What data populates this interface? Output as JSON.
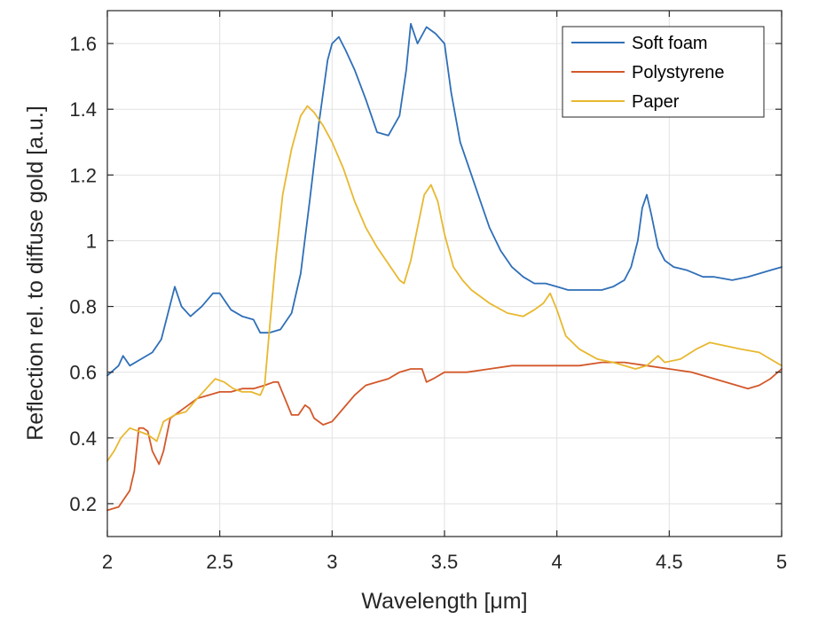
{
  "chart_data": {
    "type": "line",
    "title": "",
    "xlabel": "Wavelength [μm]",
    "ylabel": "Reflection rel. to diffuse gold [a.u.]",
    "xlim": [
      2,
      5
    ],
    "ylim": [
      0.1,
      1.7
    ],
    "xticks": [
      2,
      2.5,
      3,
      3.5,
      4,
      4.5,
      5
    ],
    "xtick_labels": [
      "2",
      "2.5",
      "3",
      "3.5",
      "4",
      "4.5",
      "5"
    ],
    "yticks": [
      0.2,
      0.4,
      0.6,
      0.8,
      1.0,
      1.2,
      1.4,
      1.6
    ],
    "ytick_labels": [
      "0.2",
      "0.4",
      "0.6",
      "0.8",
      "1",
      "1.2",
      "1.4",
      "1.6"
    ],
    "grid": true,
    "legend_position": "top-right",
    "series": [
      {
        "name": "Soft foam",
        "color": "#2f6fb8",
        "points": [
          [
            2.0,
            0.59
          ],
          [
            2.05,
            0.62
          ],
          [
            2.07,
            0.65
          ],
          [
            2.1,
            0.62
          ],
          [
            2.15,
            0.64
          ],
          [
            2.2,
            0.66
          ],
          [
            2.24,
            0.7
          ],
          [
            2.27,
            0.78
          ],
          [
            2.3,
            0.86
          ],
          [
            2.33,
            0.8
          ],
          [
            2.37,
            0.77
          ],
          [
            2.42,
            0.8
          ],
          [
            2.47,
            0.84
          ],
          [
            2.5,
            0.84
          ],
          [
            2.55,
            0.79
          ],
          [
            2.6,
            0.77
          ],
          [
            2.65,
            0.76
          ],
          [
            2.68,
            0.72
          ],
          [
            2.72,
            0.72
          ],
          [
            2.77,
            0.73
          ],
          [
            2.82,
            0.78
          ],
          [
            2.86,
            0.9
          ],
          [
            2.9,
            1.12
          ],
          [
            2.94,
            1.35
          ],
          [
            2.98,
            1.55
          ],
          [
            3.0,
            1.6
          ],
          [
            3.03,
            1.62
          ],
          [
            3.06,
            1.58
          ],
          [
            3.1,
            1.52
          ],
          [
            3.15,
            1.43
          ],
          [
            3.2,
            1.33
          ],
          [
            3.25,
            1.32
          ],
          [
            3.3,
            1.38
          ],
          [
            3.33,
            1.52
          ],
          [
            3.35,
            1.66
          ],
          [
            3.38,
            1.6
          ],
          [
            3.42,
            1.65
          ],
          [
            3.46,
            1.63
          ],
          [
            3.5,
            1.6
          ],
          [
            3.53,
            1.45
          ],
          [
            3.57,
            1.3
          ],
          [
            3.62,
            1.2
          ],
          [
            3.66,
            1.12
          ],
          [
            3.7,
            1.04
          ],
          [
            3.75,
            0.97
          ],
          [
            3.8,
            0.92
          ],
          [
            3.85,
            0.89
          ],
          [
            3.9,
            0.87
          ],
          [
            3.95,
            0.87
          ],
          [
            4.0,
            0.86
          ],
          [
            4.05,
            0.85
          ],
          [
            4.1,
            0.85
          ],
          [
            4.15,
            0.85
          ],
          [
            4.2,
            0.85
          ],
          [
            4.25,
            0.86
          ],
          [
            4.3,
            0.88
          ],
          [
            4.33,
            0.92
          ],
          [
            4.36,
            1.0
          ],
          [
            4.38,
            1.1
          ],
          [
            4.4,
            1.14
          ],
          [
            4.42,
            1.08
          ],
          [
            4.45,
            0.98
          ],
          [
            4.48,
            0.94
          ],
          [
            4.52,
            0.92
          ],
          [
            4.58,
            0.91
          ],
          [
            4.65,
            0.89
          ],
          [
            4.7,
            0.89
          ],
          [
            4.78,
            0.88
          ],
          [
            4.85,
            0.89
          ],
          [
            4.9,
            0.9
          ],
          [
            4.95,
            0.91
          ],
          [
            5.0,
            0.92
          ]
        ]
      },
      {
        "name": "Polystyrene",
        "color": "#d3582a",
        "points": [
          [
            2.0,
            0.18
          ],
          [
            2.05,
            0.19
          ],
          [
            2.1,
            0.24
          ],
          [
            2.12,
            0.3
          ],
          [
            2.14,
            0.43
          ],
          [
            2.16,
            0.43
          ],
          [
            2.18,
            0.42
          ],
          [
            2.2,
            0.36
          ],
          [
            2.23,
            0.32
          ],
          [
            2.25,
            0.36
          ],
          [
            2.28,
            0.46
          ],
          [
            2.32,
            0.48
          ],
          [
            2.36,
            0.5
          ],
          [
            2.4,
            0.52
          ],
          [
            2.45,
            0.53
          ],
          [
            2.5,
            0.54
          ],
          [
            2.55,
            0.54
          ],
          [
            2.6,
            0.55
          ],
          [
            2.65,
            0.55
          ],
          [
            2.7,
            0.56
          ],
          [
            2.74,
            0.57
          ],
          [
            2.76,
            0.57
          ],
          [
            2.79,
            0.52
          ],
          [
            2.82,
            0.47
          ],
          [
            2.85,
            0.47
          ],
          [
            2.88,
            0.5
          ],
          [
            2.9,
            0.49
          ],
          [
            2.92,
            0.46
          ],
          [
            2.96,
            0.44
          ],
          [
            3.0,
            0.45
          ],
          [
            3.05,
            0.49
          ],
          [
            3.1,
            0.53
          ],
          [
            3.15,
            0.56
          ],
          [
            3.2,
            0.57
          ],
          [
            3.25,
            0.58
          ],
          [
            3.3,
            0.6
          ],
          [
            3.35,
            0.61
          ],
          [
            3.4,
            0.61
          ],
          [
            3.42,
            0.57
          ],
          [
            3.45,
            0.58
          ],
          [
            3.5,
            0.6
          ],
          [
            3.6,
            0.6
          ],
          [
            3.7,
            0.61
          ],
          [
            3.8,
            0.62
          ],
          [
            3.9,
            0.62
          ],
          [
            4.0,
            0.62
          ],
          [
            4.1,
            0.62
          ],
          [
            4.2,
            0.63
          ],
          [
            4.3,
            0.63
          ],
          [
            4.4,
            0.62
          ],
          [
            4.5,
            0.61
          ],
          [
            4.6,
            0.6
          ],
          [
            4.7,
            0.58
          ],
          [
            4.8,
            0.56
          ],
          [
            4.85,
            0.55
          ],
          [
            4.9,
            0.56
          ],
          [
            4.95,
            0.58
          ],
          [
            5.0,
            0.61
          ]
        ]
      },
      {
        "name": "Paper",
        "color": "#e8b830",
        "points": [
          [
            2.0,
            0.33
          ],
          [
            2.03,
            0.36
          ],
          [
            2.06,
            0.4
          ],
          [
            2.1,
            0.43
          ],
          [
            2.14,
            0.42
          ],
          [
            2.18,
            0.41
          ],
          [
            2.22,
            0.39
          ],
          [
            2.25,
            0.45
          ],
          [
            2.3,
            0.47
          ],
          [
            2.35,
            0.48
          ],
          [
            2.4,
            0.52
          ],
          [
            2.44,
            0.55
          ],
          [
            2.48,
            0.58
          ],
          [
            2.52,
            0.57
          ],
          [
            2.56,
            0.55
          ],
          [
            2.6,
            0.54
          ],
          [
            2.64,
            0.54
          ],
          [
            2.68,
            0.53
          ],
          [
            2.7,
            0.56
          ],
          [
            2.72,
            0.72
          ],
          [
            2.75,
            0.95
          ],
          [
            2.78,
            1.14
          ],
          [
            2.82,
            1.28
          ],
          [
            2.86,
            1.38
          ],
          [
            2.89,
            1.41
          ],
          [
            2.92,
            1.39
          ],
          [
            2.96,
            1.35
          ],
          [
            3.0,
            1.3
          ],
          [
            3.05,
            1.22
          ],
          [
            3.1,
            1.12
          ],
          [
            3.15,
            1.04
          ],
          [
            3.2,
            0.98
          ],
          [
            3.25,
            0.93
          ],
          [
            3.3,
            0.88
          ],
          [
            3.32,
            0.87
          ],
          [
            3.35,
            0.94
          ],
          [
            3.38,
            1.04
          ],
          [
            3.41,
            1.14
          ],
          [
            3.44,
            1.17
          ],
          [
            3.47,
            1.12
          ],
          [
            3.5,
            1.02
          ],
          [
            3.54,
            0.92
          ],
          [
            3.58,
            0.88
          ],
          [
            3.62,
            0.85
          ],
          [
            3.7,
            0.81
          ],
          [
            3.78,
            0.78
          ],
          [
            3.85,
            0.77
          ],
          [
            3.9,
            0.79
          ],
          [
            3.94,
            0.81
          ],
          [
            3.97,
            0.84
          ],
          [
            4.0,
            0.79
          ],
          [
            4.04,
            0.71
          ],
          [
            4.1,
            0.67
          ],
          [
            4.18,
            0.64
          ],
          [
            4.25,
            0.63
          ],
          [
            4.3,
            0.62
          ],
          [
            4.35,
            0.61
          ],
          [
            4.4,
            0.62
          ],
          [
            4.45,
            0.65
          ],
          [
            4.48,
            0.63
          ],
          [
            4.55,
            0.64
          ],
          [
            4.62,
            0.67
          ],
          [
            4.68,
            0.69
          ],
          [
            4.75,
            0.68
          ],
          [
            4.82,
            0.67
          ],
          [
            4.9,
            0.66
          ],
          [
            4.95,
            0.64
          ],
          [
            5.0,
            0.62
          ]
        ]
      }
    ]
  }
}
